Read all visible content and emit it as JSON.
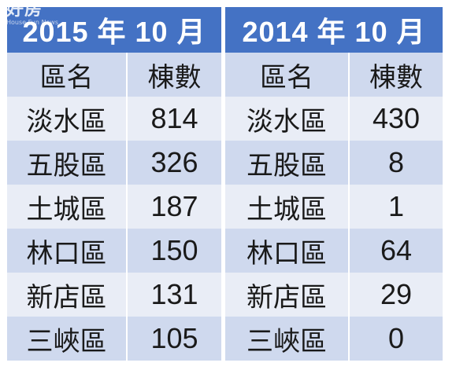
{
  "watermark": {
    "logo_text": "好房",
    "sub_text": "House Fun News"
  },
  "tables": [
    {
      "year_title": "2015 年 10 月",
      "headers": [
        "區名",
        "棟數"
      ],
      "rows": [
        {
          "district": "淡水區",
          "count": "814"
        },
        {
          "district": "五股區",
          "count": "326"
        },
        {
          "district": "土城區",
          "count": "187"
        },
        {
          "district": "林口區",
          "count": "150"
        },
        {
          "district": "新店區",
          "count": "131"
        },
        {
          "district": "三峽區",
          "count": "105"
        }
      ]
    },
    {
      "year_title": "2014 年 10 月",
      "headers": [
        "區名",
        "棟數"
      ],
      "rows": [
        {
          "district": "淡水區",
          "count": "430"
        },
        {
          "district": "五股區",
          "count": "8"
        },
        {
          "district": "土城區",
          "count": "1"
        },
        {
          "district": "林口區",
          "count": "64"
        },
        {
          "district": "新店區",
          "count": "29"
        },
        {
          "district": "三峽區",
          "count": "0"
        }
      ]
    }
  ],
  "colors": {
    "header_blue": "#4472c4",
    "band_dark": "#cfd9ee",
    "band_light": "#e9edf6"
  }
}
